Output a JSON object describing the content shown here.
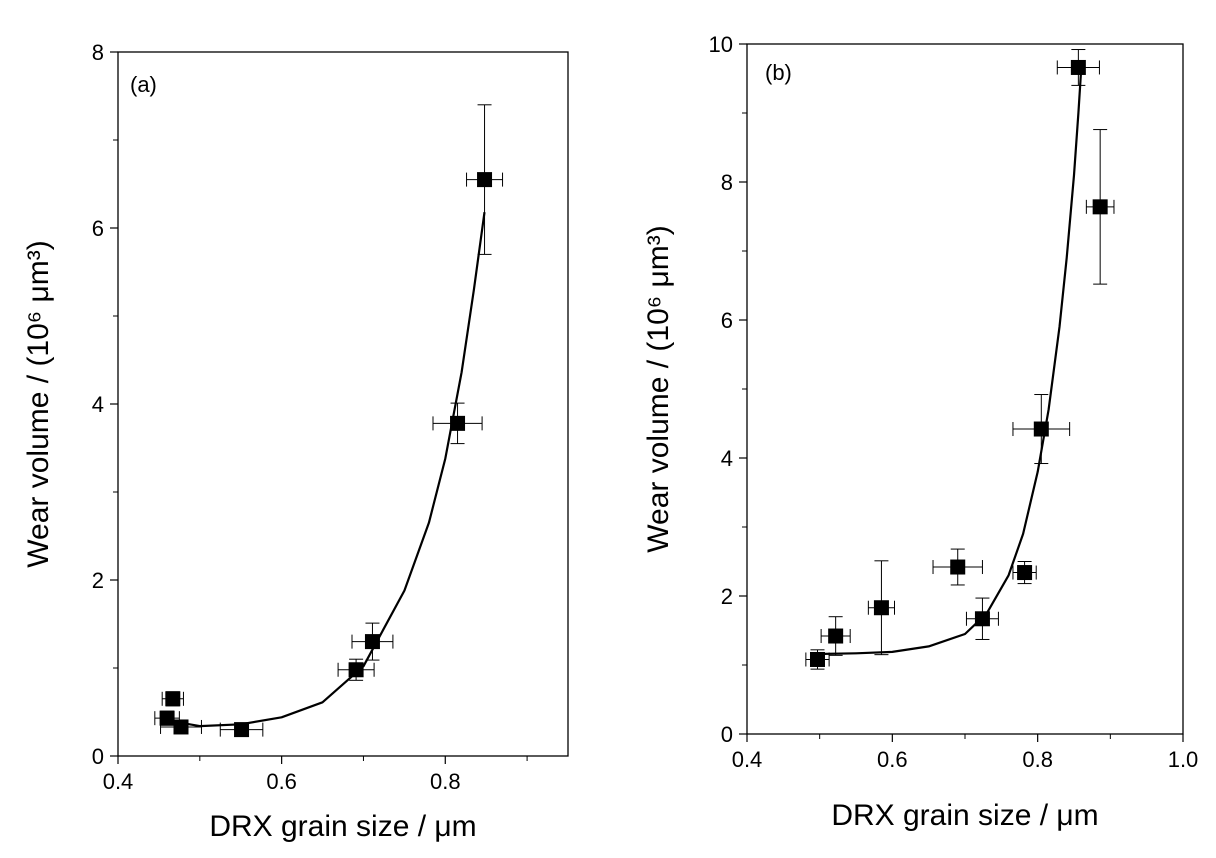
{
  "chart_data": [
    {
      "type": "scatter",
      "panel_label": "(a)",
      "xlabel": "DRX grain size / μm",
      "ylabel": "Wear volume / (10⁶ μm³)",
      "xlim": [
        0.4,
        0.95
      ],
      "ylim": [
        0,
        8
      ],
      "x_ticks": [
        0.4,
        0.6,
        0.8
      ],
      "x_ticklabels": [
        "0.4",
        "0.6",
        "0.8"
      ],
      "x_minor_ticks": [
        0.5,
        0.7,
        0.9
      ],
      "y_ticks": [
        0,
        2,
        4,
        6,
        8
      ],
      "y_ticklabels": [
        "0",
        "2",
        "4",
        "6",
        "8"
      ],
      "y_minor_ticks": [
        1,
        3,
        5,
        7
      ],
      "grid": false,
      "points": [
        {
          "x": 0.46,
          "y": 0.43,
          "xerr": 0.015,
          "yerr": 0.08
        },
        {
          "x": 0.467,
          "y": 0.65,
          "xerr": 0.013,
          "yerr": 0.08
        },
        {
          "x": 0.477,
          "y": 0.33,
          "xerr": 0.025,
          "yerr": 0.06
        },
        {
          "x": 0.551,
          "y": 0.3,
          "xerr": 0.026,
          "yerr": 0.06
        },
        {
          "x": 0.691,
          "y": 0.98,
          "xerr": 0.022,
          "yerr": 0.12
        },
        {
          "x": 0.711,
          "y": 1.3,
          "xerr": 0.025,
          "yerr": 0.21
        },
        {
          "x": 0.815,
          "y": 3.78,
          "xerr": 0.03,
          "yerr": 0.23
        },
        {
          "x": 0.848,
          "y": 6.55,
          "xerr": 0.022,
          "yerr": 0.85
        }
      ],
      "fit_curve": [
        [
          0.475,
          0.38
        ],
        [
          0.5,
          0.34
        ],
        [
          0.55,
          0.36
        ],
        [
          0.6,
          0.44
        ],
        [
          0.65,
          0.61
        ],
        [
          0.7,
          1.02
        ],
        [
          0.75,
          1.88
        ],
        [
          0.78,
          2.65
        ],
        [
          0.8,
          3.38
        ],
        [
          0.82,
          4.36
        ],
        [
          0.835,
          5.3
        ],
        [
          0.848,
          6.18
        ]
      ]
    },
    {
      "type": "scatter",
      "panel_label": "(b)",
      "xlabel": "DRX grain size / μm",
      "ylabel": "Wear volume / (10⁶ μm³)",
      "xlim": [
        0.4,
        1.0
      ],
      "ylim": [
        0,
        10
      ],
      "x_ticks": [
        0.4,
        0.6,
        0.8,
        1.0
      ],
      "x_ticklabels": [
        "0.4",
        "0.6",
        "0.8",
        "1.0"
      ],
      "x_minor_ticks": [
        0.5,
        0.7,
        0.9
      ],
      "y_ticks": [
        0,
        2,
        4,
        6,
        8,
        10
      ],
      "y_ticklabels": [
        "0",
        "2",
        "4",
        "6",
        "8",
        "10"
      ],
      "y_minor_ticks": [
        1,
        3,
        5,
        7,
        9
      ],
      "grid": false,
      "points": [
        {
          "x": 0.497,
          "y": 1.08,
          "xerr": 0.016,
          "yerr": 0.14
        },
        {
          "x": 0.522,
          "y": 1.42,
          "xerr": 0.02,
          "yerr": 0.28
        },
        {
          "x": 0.585,
          "y": 1.83,
          "xerr": 0.018,
          "yerr": 0.68
        },
        {
          "x": 0.69,
          "y": 2.42,
          "xerr": 0.034,
          "yerr": 0.26
        },
        {
          "x": 0.724,
          "y": 1.67,
          "xerr": 0.022,
          "yerr": 0.3
        },
        {
          "x": 0.782,
          "y": 2.34,
          "xerr": 0.016,
          "yerr": 0.16
        },
        {
          "x": 0.805,
          "y": 4.42,
          "xerr": 0.039,
          "yerr": 0.5
        },
        {
          "x": 0.856,
          "y": 9.66,
          "xerr": 0.029,
          "yerr": 0.26
        },
        {
          "x": 0.886,
          "y": 7.64,
          "xerr": 0.019,
          "yerr": 1.12
        }
      ],
      "fit_curve": [
        [
          0.497,
          1.16
        ],
        [
          0.55,
          1.17
        ],
        [
          0.6,
          1.19
        ],
        [
          0.65,
          1.27
        ],
        [
          0.7,
          1.45
        ],
        [
          0.73,
          1.75
        ],
        [
          0.76,
          2.3
        ],
        [
          0.78,
          2.9
        ],
        [
          0.8,
          3.8
        ],
        [
          0.815,
          4.7
        ],
        [
          0.83,
          5.9
        ],
        [
          0.84,
          6.9
        ],
        [
          0.85,
          8.1
        ],
        [
          0.856,
          9.0
        ],
        [
          0.86,
          9.66
        ]
      ]
    }
  ]
}
